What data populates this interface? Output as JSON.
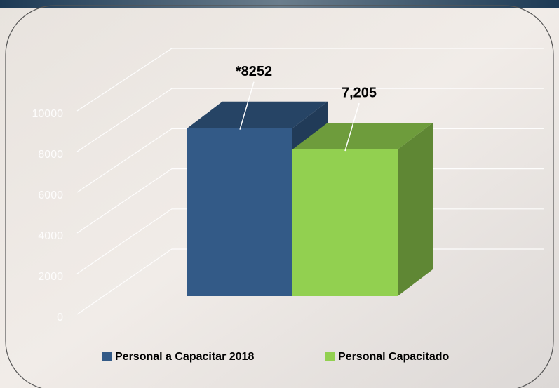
{
  "chart_data": {
    "type": "bar3d",
    "categories": [
      null
    ],
    "series": [
      {
        "name": "Personal a Capacitar 2018",
        "color": "#335a87",
        "values": [
          8252
        ],
        "value_labels": [
          "*8252"
        ]
      },
      {
        "name": "Personal Capacitado",
        "color": "#92d050",
        "values": [
          7205
        ],
        "value_labels": [
          "7,205"
        ]
      }
    ],
    "ylim": [
      0,
      10000
    ],
    "yticks": [
      0,
      2000,
      4000,
      6000,
      8000,
      10000
    ],
    "grid": true,
    "legend": "bottom"
  }
}
